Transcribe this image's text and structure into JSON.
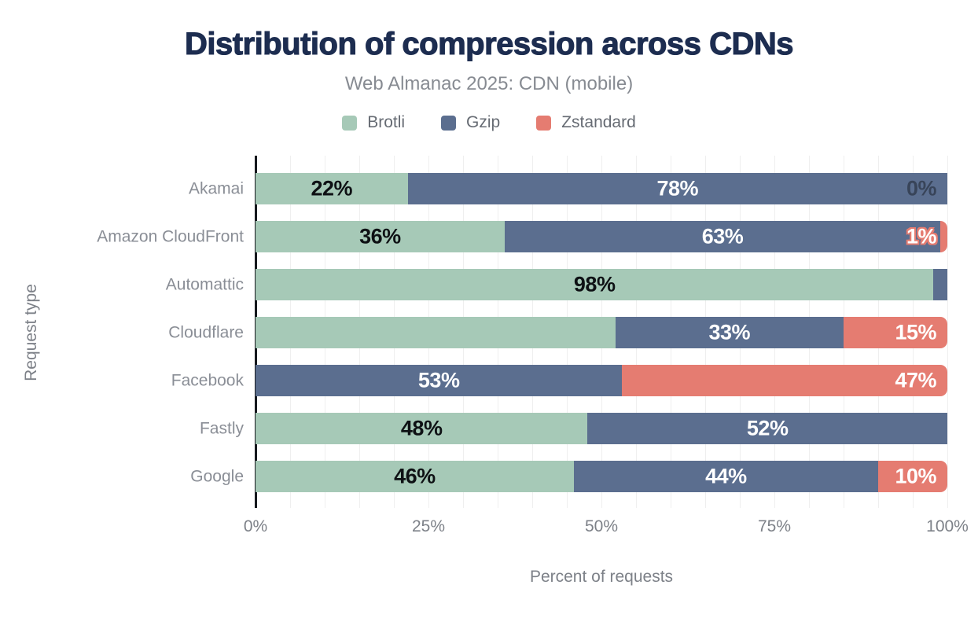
{
  "header": {
    "title": "Distribution of compression across CDNs",
    "subtitle": "Web Almanac 2025: CDN (mobile)"
  },
  "legend": [
    {
      "label": "Brotli",
      "color": "#a6c9b7"
    },
    {
      "label": "Gzip",
      "color": "#5b6e8f"
    },
    {
      "label": "Zstandard",
      "color": "#e57c71"
    }
  ],
  "axes": {
    "x_title": "Percent of requests",
    "y_title": "Request type"
  },
  "colors": {
    "title": "#1d2d50",
    "subtitle_text": "#878b92",
    "axis_line": "#16191e",
    "gridline": "#efefef",
    "brotli": "#a6c9b7",
    "gzip": "#5b6e8f",
    "zstandard": "#e57c71",
    "background": "#ffffff"
  },
  "chart_data": {
    "type": "bar",
    "stacked": true,
    "orientation": "horizontal",
    "title": "Distribution of compression across CDNs",
    "subtitle": "Web Almanac 2025: CDN (mobile)",
    "xlabel": "Percent of requests",
    "ylabel": "Request type",
    "xlim": [
      0,
      100
    ],
    "grid": "vertical, every 5%",
    "legend_position": "top center",
    "x_ticks": [
      {
        "value": 0,
        "label": "0%"
      },
      {
        "value": 25,
        "label": "25%"
      },
      {
        "value": 50,
        "label": "50%"
      },
      {
        "value": 75,
        "label": "75%"
      },
      {
        "value": 100,
        "label": "100%"
      }
    ],
    "series_names": [
      "Brotli",
      "Gzip",
      "Zstandard"
    ],
    "series_colors": {
      "Brotli": "#a6c9b7",
      "Gzip": "#5b6e8f",
      "Zstandard": "#e57c71"
    },
    "categories": [
      "Akamai",
      "Amazon CloudFront",
      "Automattic",
      "Cloudflare",
      "Facebook",
      "Fastly",
      "Google"
    ],
    "rows": [
      {
        "category": "Akamai",
        "segments": [
          {
            "series": "Brotli",
            "value": 22,
            "label": "22%",
            "label_style": "dark",
            "label_align": "center"
          },
          {
            "series": "Gzip",
            "value": 78,
            "label": "78%",
            "label_style": "white",
            "label_align": "center"
          },
          {
            "series": "Zstandard",
            "value": 0,
            "label": "0%",
            "label_style": "muted",
            "label_align": "end"
          }
        ]
      },
      {
        "category": "Amazon CloudFront",
        "segments": [
          {
            "series": "Brotli",
            "value": 36,
            "label": "36%",
            "label_style": "dark",
            "label_align": "center"
          },
          {
            "series": "Gzip",
            "value": 63,
            "label": "63%",
            "label_style": "white",
            "label_align": "center"
          },
          {
            "series": "Zstandard",
            "value": 1,
            "label": "1%",
            "label_style": "outline",
            "label_align": "end"
          }
        ]
      },
      {
        "category": "Automattic",
        "segments": [
          {
            "series": "Brotli",
            "value": 98,
            "label": "98%",
            "label_style": "dark",
            "label_align": "center"
          },
          {
            "series": "Gzip",
            "value": 2,
            "label": "",
            "label_style": "white",
            "label_align": "center"
          }
        ]
      },
      {
        "category": "Cloudflare",
        "segments": [
          {
            "series": "Brotli",
            "value": 52,
            "label": "",
            "label_style": "dark",
            "label_align": "center"
          },
          {
            "series": "Gzip",
            "value": 33,
            "label": "33%",
            "label_style": "white",
            "label_align": "center"
          },
          {
            "series": "Zstandard",
            "value": 15,
            "label": "15%",
            "label_style": "white",
            "label_align": "end"
          }
        ]
      },
      {
        "category": "Facebook",
        "segments": [
          {
            "series": "Gzip",
            "value": 53,
            "label": "53%",
            "label_style": "white",
            "label_align": "center"
          },
          {
            "series": "Zstandard",
            "value": 47,
            "label": "47%",
            "label_style": "white",
            "label_align": "end"
          }
        ]
      },
      {
        "category": "Fastly",
        "segments": [
          {
            "series": "Brotli",
            "value": 48,
            "label": "48%",
            "label_style": "dark",
            "label_align": "center"
          },
          {
            "series": "Gzip",
            "value": 52,
            "label": "52%",
            "label_style": "white",
            "label_align": "center"
          }
        ]
      },
      {
        "category": "Google",
        "segments": [
          {
            "series": "Brotli",
            "value": 46,
            "label": "46%",
            "label_style": "dark",
            "label_align": "center"
          },
          {
            "series": "Gzip",
            "value": 44,
            "label": "44%",
            "label_style": "white",
            "label_align": "center"
          },
          {
            "series": "Zstandard",
            "value": 10,
            "label": "10%",
            "label_style": "white",
            "label_align": "end"
          }
        ]
      }
    ]
  }
}
